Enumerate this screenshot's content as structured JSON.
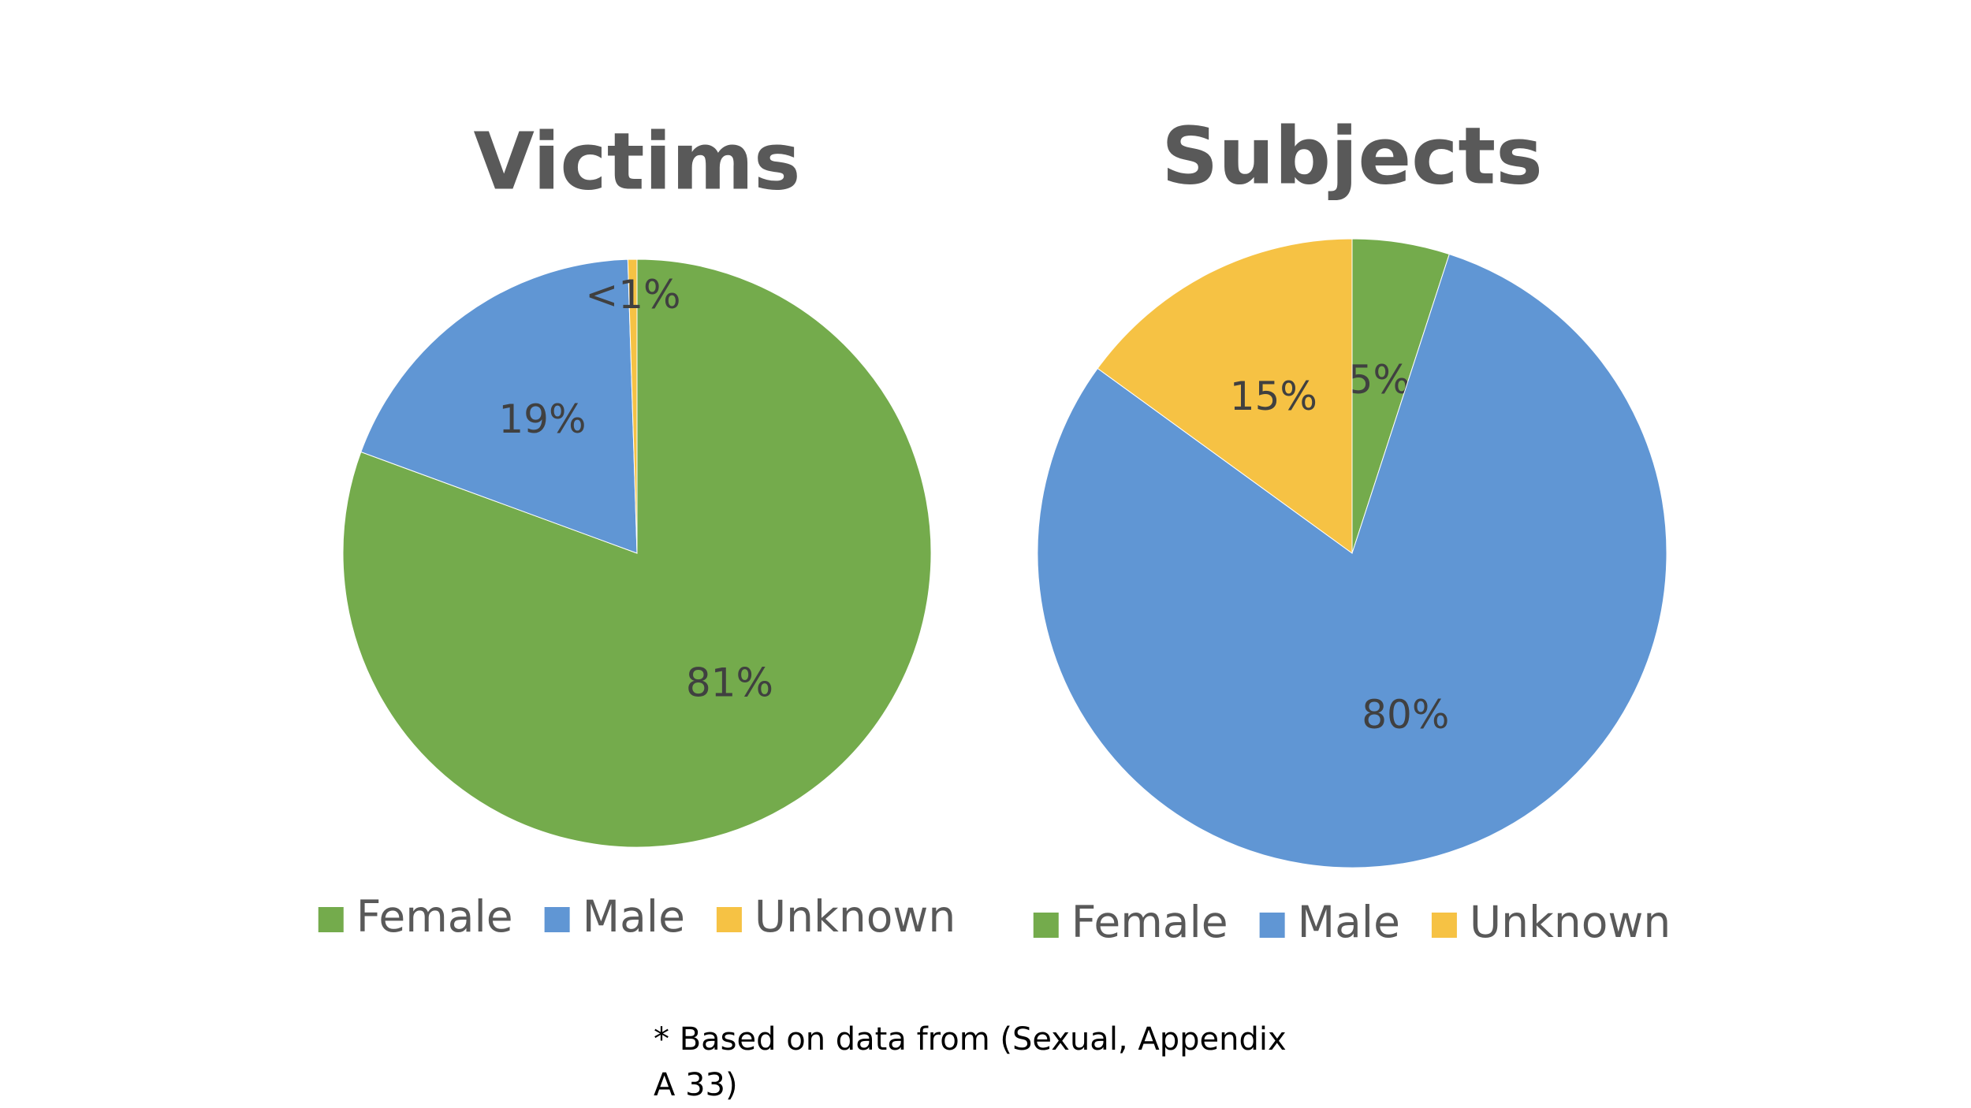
{
  "chart_data": [
    {
      "type": "pie",
      "title": "Victims",
      "categories": [
        "Female",
        "Male",
        "Unknown"
      ],
      "values": [
        81,
        19,
        0.5
      ],
      "value_labels": [
        "81%",
        "19%",
        "<1%"
      ],
      "colors": [
        "#74ab4c",
        "#6096d4",
        "#f6c244"
      ]
    },
    {
      "type": "pie",
      "title": "Subjects",
      "categories": [
        "Female",
        "Male",
        "Unknown"
      ],
      "values": [
        5,
        80,
        15
      ],
      "value_labels": [
        "5%",
        "80%",
        "15%"
      ],
      "colors": [
        "#74ab4c",
        "#6096d4",
        "#f6c244"
      ]
    }
  ],
  "footnote": "* Based on data from (Sexual, Appendix A 33)"
}
